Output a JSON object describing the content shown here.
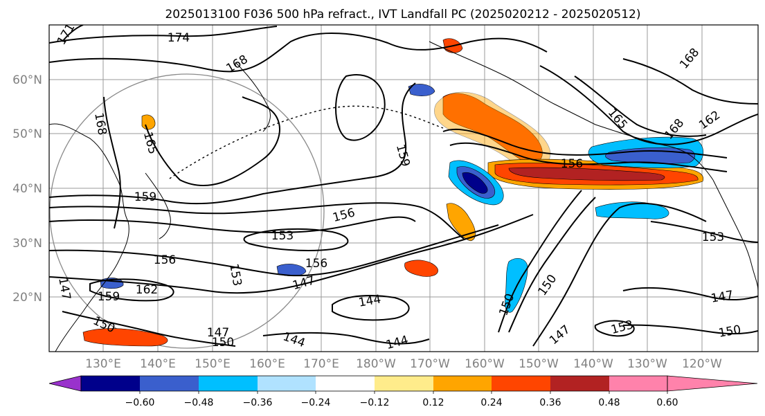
{
  "title": "2025013100 F036 500 hPa refract., IVT Landfall PC (2025020212 - 2025020512)",
  "lat_labels": [
    "60°N",
    "50°N",
    "40°N",
    "30°N",
    "20°N"
  ],
  "lon_labels": [
    "130°E",
    "140°E",
    "150°E",
    "160°E",
    "170°E",
    "180°W",
    "170°W",
    "160°W",
    "150°W",
    "140°W",
    "130°W",
    "120°W"
  ],
  "colorbar": {
    "colors": [
      "#9932CC",
      "#00008B",
      "#3A5FCD",
      "#00BFFF",
      "#B0E2FF",
      "#FFFFFF",
      "#FFEC8B",
      "#FFA500",
      "#FF4500",
      "#B22222",
      "#FF82AB"
    ],
    "tick_labels": [
      "−0.60",
      "−0.48",
      "−0.36",
      "−0.24",
      "−0.12",
      "0.12",
      "0.24",
      "0.36",
      "0.48",
      "0.60"
    ]
  },
  "contour_labels": [
    "174",
    "168",
    "168",
    "165",
    "165",
    "159",
    "159",
    "156",
    "156",
    "153",
    "156",
    "153",
    "156",
    "147",
    "162",
    "159",
    "150",
    "147",
    "150",
    "144",
    "144",
    "144",
    "156",
    "165",
    "162",
    "168",
    "153",
    "150",
    "150",
    "153",
    "147",
    "147",
    "150",
    "147",
    "171",
    "168"
  ]
}
